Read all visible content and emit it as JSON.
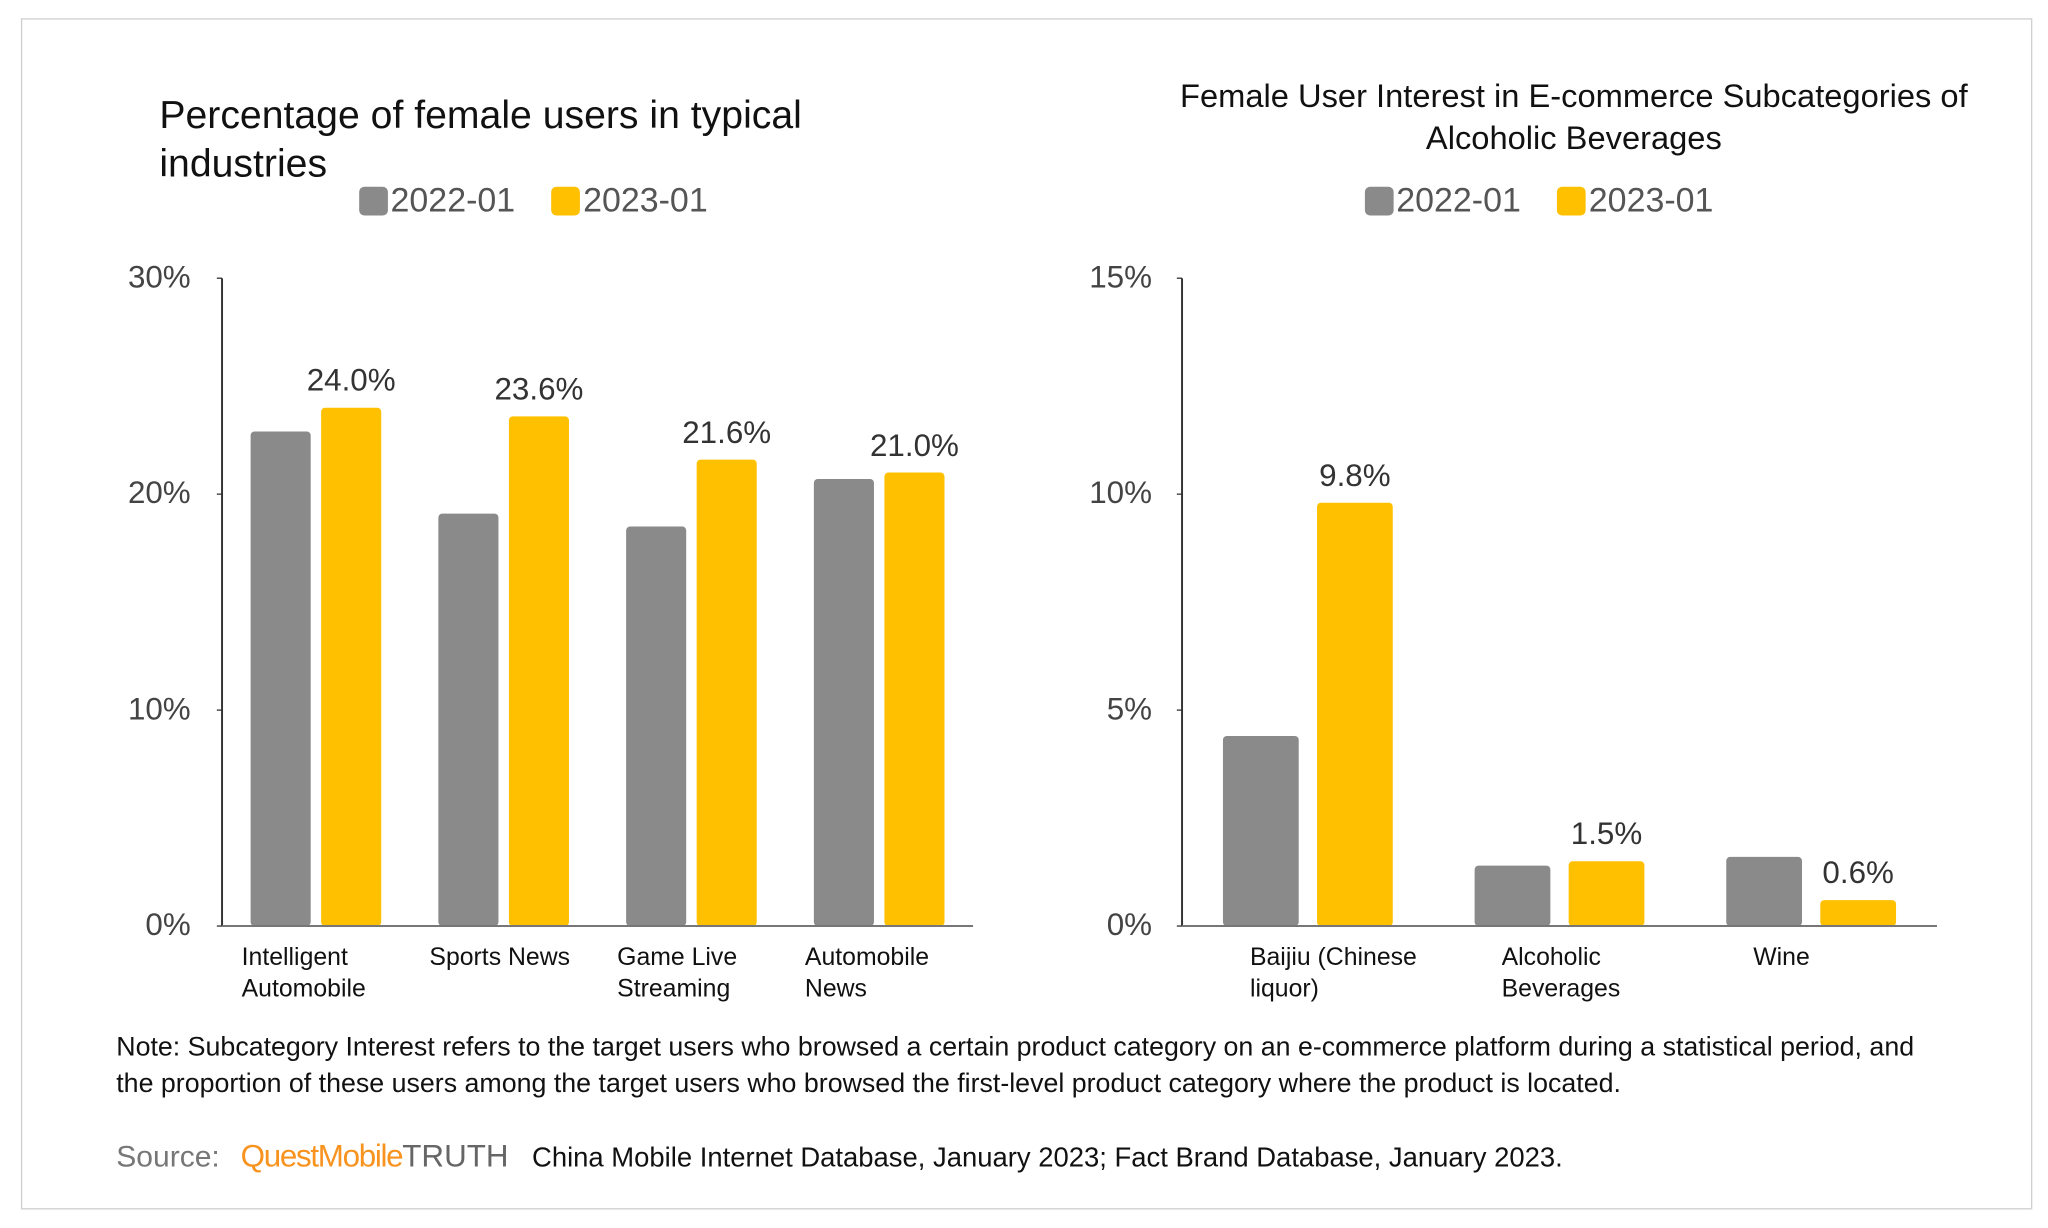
{
  "chart_data": [
    {
      "type": "bar",
      "title": "Percentage of female users in typical industries",
      "categories": [
        "Intelligent Automobile",
        "Sports News",
        "Game Live Streaming",
        "Automobile News"
      ],
      "series": [
        {
          "name": "2022-01",
          "color": "#8a8a8a",
          "values": [
            22.9,
            19.1,
            18.5,
            20.7
          ]
        },
        {
          "name": "2023-01",
          "color": "#ffc000",
          "values": [
            24.0,
            23.6,
            21.6,
            21.0
          ],
          "value_labels": [
            "24.0%",
            "23.6%",
            "21.6%",
            "21.0%"
          ]
        }
      ],
      "ylim": [
        0,
        30
      ],
      "yticks": [
        {
          "value": 0,
          "label": "0%"
        },
        {
          "value": 10,
          "label": "10%"
        },
        {
          "value": 20,
          "label": "20%"
        },
        {
          "value": 30,
          "label": "30%"
        }
      ]
    },
    {
      "type": "bar",
      "title": "Female User Interest in E-commerce Subcategories of Alcoholic Beverages",
      "categories": [
        "Baijiu (Chinese liquor)",
        "Alcoholic Beverages",
        "Wine"
      ],
      "series": [
        {
          "name": "2022-01",
          "color": "#8a8a8a",
          "values": [
            4.4,
            1.4,
            1.6
          ]
        },
        {
          "name": "2023-01",
          "color": "#ffc000",
          "values": [
            9.8,
            1.5,
            0.6
          ],
          "value_labels": [
            "9.8%",
            "1.5%",
            "0.6%"
          ]
        }
      ],
      "ylim": [
        0,
        15
      ],
      "yticks": [
        {
          "value": 0,
          "label": "0%"
        },
        {
          "value": 5,
          "label": "5%"
        },
        {
          "value": 10,
          "label": "10%"
        },
        {
          "value": 15,
          "label": "15%"
        }
      ]
    }
  ],
  "note": "Note: Subcategory Interest refers to the target users who browsed a certain product category on an e-commerce platform during a statistical period, and the proportion of these users among the target users who browsed the first-level product category where the product is located.",
  "source": {
    "label": "Source:",
    "brand": "QuestMobile",
    "brand_suffix": "TRUTH",
    "text": "China Mobile Internet Database, January 2023; Fact Brand Database, January 2023."
  }
}
